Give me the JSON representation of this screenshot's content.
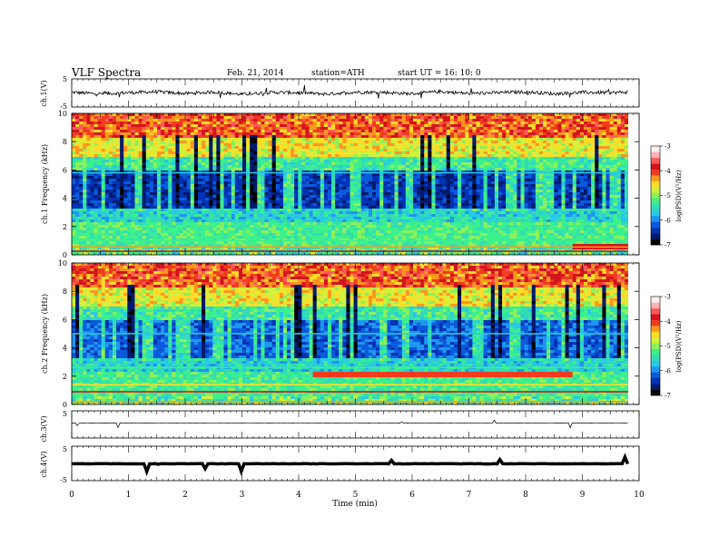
{
  "header": {
    "title": "VLF  Spectra",
    "date": "Feb. 21, 2014",
    "station": "station=ATH",
    "start": "start  UT  =   16: 10: 0"
  },
  "colors": {
    "colormap": [
      "#000000",
      "#001a6e",
      "#0032b4",
      "#0a5adc",
      "#1e96f0",
      "#28c8e6",
      "#32dcb4",
      "#3cf08c",
      "#8cf05a",
      "#d2f03c",
      "#ffdc28",
      "#ff961e",
      "#f03c1e",
      "#d2141e",
      "#ff5a5a",
      "#ffb4b4",
      "#fff0f0"
    ],
    "trace": "#000000"
  },
  "chart_data": [
    {
      "type": "line",
      "panel": "ch1-waveform",
      "ylabel": "ch.1(V)",
      "ylim": [
        -5,
        5
      ],
      "yticks": [
        "5",
        "-5"
      ],
      "x": [
        0,
        0.5,
        1,
        1.5,
        2,
        2.5,
        3,
        3.5,
        4,
        4.5,
        5,
        5.5,
        6,
        6.5,
        7,
        7.5,
        8,
        8.5,
        9,
        9.5,
        9.8
      ],
      "values": [
        0.2,
        -0.3,
        0.1,
        0.4,
        -0.2,
        0.3,
        -0.5,
        0.2,
        0.1,
        -0.4,
        0.3,
        0.2,
        -0.3,
        0.5,
        -0.2,
        0.1,
        0.4,
        -0.3,
        0.2,
        0.1,
        0.3
      ]
    },
    {
      "type": "heatmap",
      "panel": "ch1-spectrogram",
      "ylabel": "ch.1 Frequency  (kHz)",
      "ylim": [
        0,
        10
      ],
      "yticks": [
        "0",
        "2",
        "4",
        "6",
        "8",
        "10"
      ],
      "colorbar": {
        "label": "log(PSD)(V²/Hz)",
        "range": [
          -7,
          -3
        ],
        "ticks": [
          "-3",
          "-4",
          "-5",
          "-6",
          "-7"
        ]
      }
    },
    {
      "type": "heatmap",
      "panel": "ch2-spectrogram",
      "ylabel": "ch.2 Frequency  (kHz)",
      "ylim": [
        0,
        10
      ],
      "yticks": [
        "0",
        "2",
        "4",
        "6",
        "8",
        "10"
      ],
      "colorbar": {
        "label": "log(PSD)(V²/Hz)",
        "range": [
          -7,
          -3
        ],
        "ticks": [
          "-3",
          "-4",
          "-5",
          "-6",
          "-7"
        ]
      }
    },
    {
      "type": "line",
      "panel": "ch3-waveform",
      "ylabel": "ch.3(V)",
      "ylim": [
        -5,
        5
      ],
      "yticks": [
        "5"
      ],
      "x": [
        0,
        9.8
      ],
      "values": [
        0.5,
        0.5
      ]
    },
    {
      "type": "line",
      "panel": "ch4-waveform",
      "ylabel": "ch.4(V)",
      "ylim": [
        -5,
        5
      ],
      "yticks": [
        "5",
        "-5"
      ],
      "x": [
        0,
        9.8
      ],
      "values": [
        -0.1,
        -0.1
      ]
    }
  ],
  "xaxis": {
    "xlabel": "Time  (min)",
    "xlim": [
      0,
      10
    ],
    "ticks": [
      "0",
      "1",
      "2",
      "3",
      "4",
      "5",
      "6",
      "7",
      "8",
      "9",
      "10"
    ]
  }
}
